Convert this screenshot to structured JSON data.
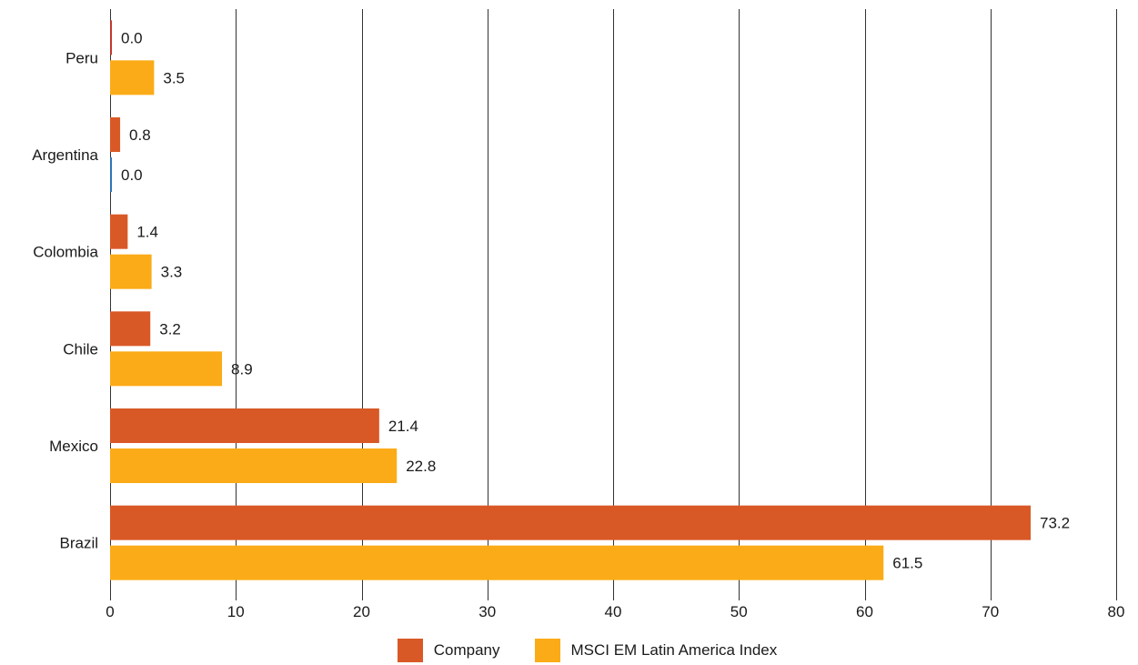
{
  "colors": {
    "company": "#D95926",
    "index": "#FBAB18",
    "zero_company": "#C0392B",
    "zero_index": "#2E75B6",
    "grid": "#333333"
  },
  "legend": [
    {
      "name": "Company",
      "color": "#D95926"
    },
    {
      "name": "MSCI EM Latin America Index",
      "color": "#FBAB18"
    }
  ],
  "chart_data": {
    "type": "bar",
    "orientation": "horizontal",
    "categories": [
      "Peru",
      "Argentina",
      "Colombia",
      "Chile",
      "Mexico",
      "Brazil"
    ],
    "series": [
      {
        "name": "Company",
        "values": [
          0.0,
          0.8,
          1.4,
          3.2,
          21.4,
          73.2
        ],
        "labels": [
          "0.0",
          "0.8",
          "1.4",
          "3.2",
          "21.4",
          "73.2"
        ]
      },
      {
        "name": "MSCI EM Latin America Index",
        "values": [
          3.5,
          0.0,
          3.3,
          8.9,
          22.8,
          61.5
        ],
        "labels": [
          "3.5",
          "0.0",
          "3.3",
          "8.9",
          "22.8",
          "61.5"
        ]
      }
    ],
    "xlim": [
      0,
      80
    ],
    "xticks": [
      0,
      10,
      20,
      30,
      40,
      50,
      60,
      70,
      80
    ],
    "grid": "vertical",
    "legend_position": "bottom",
    "title": "",
    "xlabel": "",
    "ylabel": ""
  }
}
